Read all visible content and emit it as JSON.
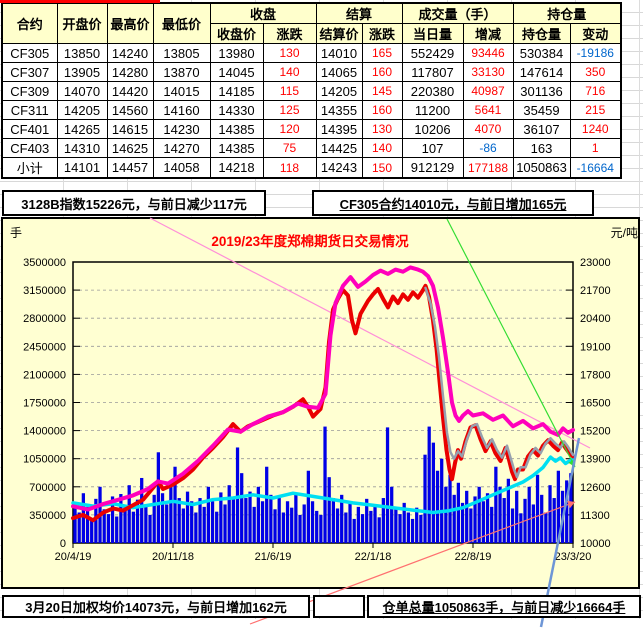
{
  "table": {
    "headers": {
      "contract": "合约",
      "open": "开盘价",
      "high": "最高价",
      "low": "最低价",
      "close_group": "收盘",
      "settle_group": "结算",
      "volume_group": "成交量（手）",
      "oi_group": "持仓量",
      "close_price": "收盘价",
      "close_chg": "涨跌",
      "settle_price": "结算价",
      "settle_chg": "涨跌",
      "day_volume": "当日量",
      "vol_chg": "增减",
      "oi": "持仓量",
      "oi_chg": "变动"
    },
    "rows": [
      [
        "CF305",
        13850,
        14240,
        13805,
        13980,
        130,
        14010,
        165,
        552429,
        93446,
        530384,
        -19186
      ],
      [
        "CF307",
        13905,
        14280,
        13870,
        14045,
        140,
        14065,
        160,
        117807,
        33130,
        147614,
        350
      ],
      [
        "CF309",
        14070,
        14420,
        14015,
        14185,
        115,
        14205,
        145,
        220380,
        40987,
        301136,
        716
      ],
      [
        "CF311",
        14205,
        14560,
        14160,
        14330,
        125,
        14355,
        160,
        11200,
        5641,
        35459,
        215
      ],
      [
        "CF401",
        14265,
        14615,
        14230,
        14385,
        120,
        14395,
        130,
        10206,
        4070,
        36107,
        1240
      ],
      [
        "CF403",
        14310,
        14625,
        14270,
        14385,
        75,
        14425,
        140,
        107,
        -86,
        163,
        1
      ],
      [
        "小计",
        14101,
        14457,
        14058,
        14218,
        118,
        14243,
        150,
        912129,
        177188,
        1050863,
        -16664
      ]
    ]
  },
  "status_bars": {
    "index_info": "3128B指数15226元，与前日减少117元",
    "cf305_info": "CF305合约14010元，与前日增加165元",
    "weighted_info": "3月20日加权均价14073元，与前日增加162元",
    "receipt_info": "仓单总量1050863手，与前日减少16664手"
  },
  "colors": {
    "positive_text": "#ff0000",
    "negative_text": "#0066cc",
    "header_bg": "#ffffcc",
    "chart_bg": "#ffffd2",
    "bar_blue": "#0000e6",
    "oi_cyan": "#00dff2",
    "price_red": "#ea0000",
    "index_magenta": "#ff00bb",
    "avg_gray": "#97a0ae",
    "trend_pink": "#ff8fd8",
    "trend_green": "#33dd33",
    "trend_red": "#ff7070",
    "trend_blue": "#6e96d6"
  },
  "chart_data": {
    "type": "composite",
    "title": "2019/23年度郑棉期货日交易情况",
    "ylabel_left": "手",
    "ylabel_right": "元/吨",
    "left_axis": {
      "min": 0,
      "max": 3500000,
      "step": 350000
    },
    "right_axis": {
      "min": 10000,
      "max": 23000,
      "step": 1300
    },
    "x_labels": [
      "20/4/19",
      "20/11/18",
      "21/6/19",
      "22/1/18",
      "22/8/19",
      "23/3/20"
    ],
    "grid": "horizontal-dashed",
    "series": [
      {
        "name": "volume_bars",
        "type": "bar",
        "axis": "left",
        "unit": "手",
        "values_thousands": [
          500,
          380,
          620,
          450,
          300,
          550,
          700,
          420,
          360,
          580,
          330,
          610,
          470,
          720,
          390,
          540,
          810,
          460,
          350,
          600,
          1130,
          620,
          480,
          700,
          950,
          560,
          430,
          640,
          520,
          380,
          560,
          450,
          700,
          520,
          390,
          630,
          480,
          720,
          550,
          1190,
          870,
          560,
          640,
          450,
          700,
          520,
          950,
          600,
          420,
          560,
          380,
          520,
          440,
          610,
          350,
          480,
          900,
          520,
          400,
          350,
          1450,
          820,
          560,
          430,
          600,
          380,
          520,
          300,
          450,
          360,
          550,
          400,
          480,
          320,
          560,
          1440,
          700,
          420,
          360,
          500,
          380,
          300,
          440,
          350,
          1100,
          1450,
          1250,
          900,
          1050,
          700,
          850,
          600,
          750,
          500,
          650,
          430,
          580,
          700,
          520,
          620,
          450,
          950,
          700,
          560,
          800,
          430,
          650,
          370,
          550,
          700,
          480,
          850,
          600,
          380,
          720,
          560,
          900,
          650,
          780,
          870
        ]
      },
      {
        "name": "open_interest_line",
        "type": "line",
        "axis": "left",
        "unit": "手",
        "width": 3.5,
        "points_thousands": [
          [
            0,
            500
          ],
          [
            0.04,
            460
          ],
          [
            0.08,
            490
          ],
          [
            0.12,
            440
          ],
          [
            0.16,
            480
          ],
          [
            0.2,
            520
          ],
          [
            0.24,
            480
          ],
          [
            0.28,
            540
          ],
          [
            0.32,
            560
          ],
          [
            0.36,
            600
          ],
          [
            0.4,
            560
          ],
          [
            0.44,
            620
          ],
          [
            0.48,
            580
          ],
          [
            0.52,
            540
          ],
          [
            0.56,
            500
          ],
          [
            0.6,
            470
          ],
          [
            0.64,
            440
          ],
          [
            0.68,
            410
          ],
          [
            0.72,
            380
          ],
          [
            0.75,
            400
          ],
          [
            0.78,
            440
          ],
          [
            0.81,
            520
          ],
          [
            0.84,
            600
          ],
          [
            0.87,
            680
          ],
          [
            0.9,
            760
          ],
          [
            0.92,
            840
          ],
          [
            0.94,
            940
          ],
          [
            0.955,
            1070
          ],
          [
            0.965,
            1020
          ],
          [
            0.975,
            1060
          ],
          [
            0.985,
            990
          ],
          [
            1,
            1050
          ]
        ]
      },
      {
        "name": "futures_price_line",
        "type": "line",
        "axis": "right",
        "unit": "元/吨",
        "width": 4,
        "points": [
          [
            0,
            11150
          ],
          [
            0.02,
            11300
          ],
          [
            0.04,
            11050
          ],
          [
            0.06,
            11400
          ],
          [
            0.08,
            11600
          ],
          [
            0.1,
            11500
          ],
          [
            0.12,
            11750
          ],
          [
            0.14,
            12000
          ],
          [
            0.16,
            12550
          ],
          [
            0.17,
            12850
          ],
          [
            0.18,
            12500
          ],
          [
            0.2,
            12700
          ],
          [
            0.22,
            13000
          ],
          [
            0.24,
            13400
          ],
          [
            0.26,
            13950
          ],
          [
            0.28,
            14400
          ],
          [
            0.3,
            14900
          ],
          [
            0.32,
            15500
          ],
          [
            0.335,
            15150
          ],
          [
            0.35,
            15400
          ],
          [
            0.37,
            15600
          ],
          [
            0.4,
            15900
          ],
          [
            0.42,
            16050
          ],
          [
            0.44,
            16300
          ],
          [
            0.46,
            16650
          ],
          [
            0.47,
            16300
          ],
          [
            0.48,
            15850
          ],
          [
            0.495,
            16200
          ],
          [
            0.505,
            17200
          ],
          [
            0.512,
            19300
          ],
          [
            0.52,
            20800
          ],
          [
            0.53,
            21300
          ],
          [
            0.54,
            21700
          ],
          [
            0.55,
            21450
          ],
          [
            0.558,
            20300
          ],
          [
            0.565,
            19700
          ],
          [
            0.575,
            20600
          ],
          [
            0.59,
            21200
          ],
          [
            0.6,
            21500
          ],
          [
            0.61,
            21750
          ],
          [
            0.62,
            21300
          ],
          [
            0.63,
            20900
          ],
          [
            0.64,
            21400
          ],
          [
            0.65,
            21100
          ],
          [
            0.66,
            21500
          ],
          [
            0.67,
            21250
          ],
          [
            0.68,
            21600
          ],
          [
            0.69,
            21350
          ],
          [
            0.7,
            21700
          ],
          [
            0.705,
            21900
          ],
          [
            0.712,
            21400
          ],
          [
            0.72,
            20300
          ],
          [
            0.727,
            19000
          ],
          [
            0.733,
            17500
          ],
          [
            0.74,
            15800
          ],
          [
            0.747,
            14300
          ],
          [
            0.753,
            13400
          ],
          [
            0.758,
            12950
          ],
          [
            0.764,
            13700
          ],
          [
            0.77,
            14300
          ],
          [
            0.776,
            13900
          ],
          [
            0.785,
            14700
          ],
          [
            0.795,
            15350
          ],
          [
            0.805,
            15450
          ],
          [
            0.815,
            14800
          ],
          [
            0.825,
            14250
          ],
          [
            0.835,
            14700
          ],
          [
            0.845,
            14150
          ],
          [
            0.855,
            13800
          ],
          [
            0.865,
            14400
          ],
          [
            0.872,
            13850
          ],
          [
            0.878,
            13300
          ],
          [
            0.884,
            12950
          ],
          [
            0.89,
            13400
          ],
          [
            0.9,
            13400
          ],
          [
            0.91,
            14000
          ],
          [
            0.92,
            14300
          ],
          [
            0.93,
            14050
          ],
          [
            0.94,
            14500
          ],
          [
            0.95,
            14750
          ],
          [
            0.96,
            14500
          ],
          [
            0.97,
            14300
          ],
          [
            0.978,
            14650
          ],
          [
            0.985,
            14400
          ],
          [
            0.993,
            14150
          ],
          [
            1,
            14010
          ]
        ]
      },
      {
        "name": "weighted_avg_line",
        "type": "line",
        "axis": "right",
        "unit": "元/吨",
        "width": 2.5,
        "points": [
          [
            0.705,
            21800
          ],
          [
            0.715,
            21100
          ],
          [
            0.724,
            20000
          ],
          [
            0.732,
            18600
          ],
          [
            0.74,
            16800
          ],
          [
            0.748,
            15100
          ],
          [
            0.755,
            14200
          ],
          [
            0.762,
            13900
          ],
          [
            0.77,
            14250
          ],
          [
            0.778,
            14000
          ],
          [
            0.788,
            14800
          ],
          [
            0.798,
            15400
          ],
          [
            0.808,
            15500
          ],
          [
            0.818,
            14900
          ],
          [
            0.828,
            14400
          ],
          [
            0.838,
            14800
          ],
          [
            0.848,
            14300
          ],
          [
            0.858,
            13950
          ],
          [
            0.868,
            14500
          ],
          [
            0.875,
            13950
          ],
          [
            0.882,
            13400
          ],
          [
            0.888,
            13050
          ],
          [
            0.895,
            13500
          ],
          [
            0.905,
            13500
          ],
          [
            0.915,
            14100
          ],
          [
            0.925,
            14400
          ],
          [
            0.935,
            14150
          ],
          [
            0.945,
            14600
          ],
          [
            0.955,
            14850
          ],
          [
            0.965,
            14600
          ],
          [
            0.975,
            14400
          ],
          [
            0.982,
            14700
          ],
          [
            0.99,
            14450
          ],
          [
            1,
            14073
          ]
        ]
      },
      {
        "name": "spot_index_line",
        "type": "line",
        "axis": "right",
        "unit": "元/吨",
        "width": 4,
        "points": [
          [
            0,
            11700
          ],
          [
            0.03,
            11550
          ],
          [
            0.06,
            11800
          ],
          [
            0.09,
            12000
          ],
          [
            0.12,
            12200
          ],
          [
            0.15,
            12500
          ],
          [
            0.17,
            12850
          ],
          [
            0.19,
            12750
          ],
          [
            0.22,
            13200
          ],
          [
            0.25,
            13800
          ],
          [
            0.28,
            14500
          ],
          [
            0.31,
            15250
          ],
          [
            0.335,
            15150
          ],
          [
            0.36,
            15500
          ],
          [
            0.39,
            15850
          ],
          [
            0.42,
            16050
          ],
          [
            0.45,
            16450
          ],
          [
            0.47,
            16300
          ],
          [
            0.49,
            16250
          ],
          [
            0.505,
            16900
          ],
          [
            0.515,
            19600
          ],
          [
            0.525,
            21100
          ],
          [
            0.54,
            21900
          ],
          [
            0.555,
            22300
          ],
          [
            0.57,
            21850
          ],
          [
            0.585,
            22100
          ],
          [
            0.6,
            22400
          ],
          [
            0.615,
            22600
          ],
          [
            0.63,
            22450
          ],
          [
            0.645,
            22650
          ],
          [
            0.66,
            22550
          ],
          [
            0.675,
            22750
          ],
          [
            0.69,
            22650
          ],
          [
            0.7,
            22550
          ],
          [
            0.71,
            22350
          ],
          [
            0.72,
            21900
          ],
          [
            0.73,
            20900
          ],
          [
            0.74,
            19500
          ],
          [
            0.75,
            17900
          ],
          [
            0.758,
            16500
          ],
          [
            0.765,
            15900
          ],
          [
            0.772,
            15650
          ],
          [
            0.78,
            15900
          ],
          [
            0.79,
            16100
          ],
          [
            0.8,
            15900
          ],
          [
            0.82,
            16000
          ],
          [
            0.84,
            15700
          ],
          [
            0.86,
            15900
          ],
          [
            0.88,
            15400
          ],
          [
            0.9,
            15650
          ],
          [
            0.92,
            15300
          ],
          [
            0.94,
            15500
          ],
          [
            0.955,
            15150
          ],
          [
            0.97,
            15000
          ],
          [
            0.98,
            15300
          ],
          [
            0.99,
            15100
          ],
          [
            1,
            15226
          ]
        ]
      }
    ],
    "trend_lines": [
      {
        "name": "pink-trend",
        "color_key": "trend_pink",
        "width": 1.2,
        "x1": 150,
        "y1": 218,
        "x2": 590,
        "y2": 448,
        "arrow": false
      },
      {
        "name": "green-trend",
        "color_key": "trend_green",
        "width": 1.2,
        "x1": 447,
        "y1": 219,
        "x2": 575,
        "y2": 467,
        "arrow": true
      },
      {
        "name": "red-trend",
        "color_key": "trend_red",
        "width": 1.2,
        "x1": 250,
        "y1": 624,
        "x2": 575,
        "y2": 502,
        "arrow": true
      },
      {
        "name": "blue-trend",
        "color_key": "trend_blue",
        "width": 2.5,
        "x1": 579,
        "y1": 438,
        "x2": 541,
        "y2": 627,
        "arrow": false
      }
    ]
  }
}
